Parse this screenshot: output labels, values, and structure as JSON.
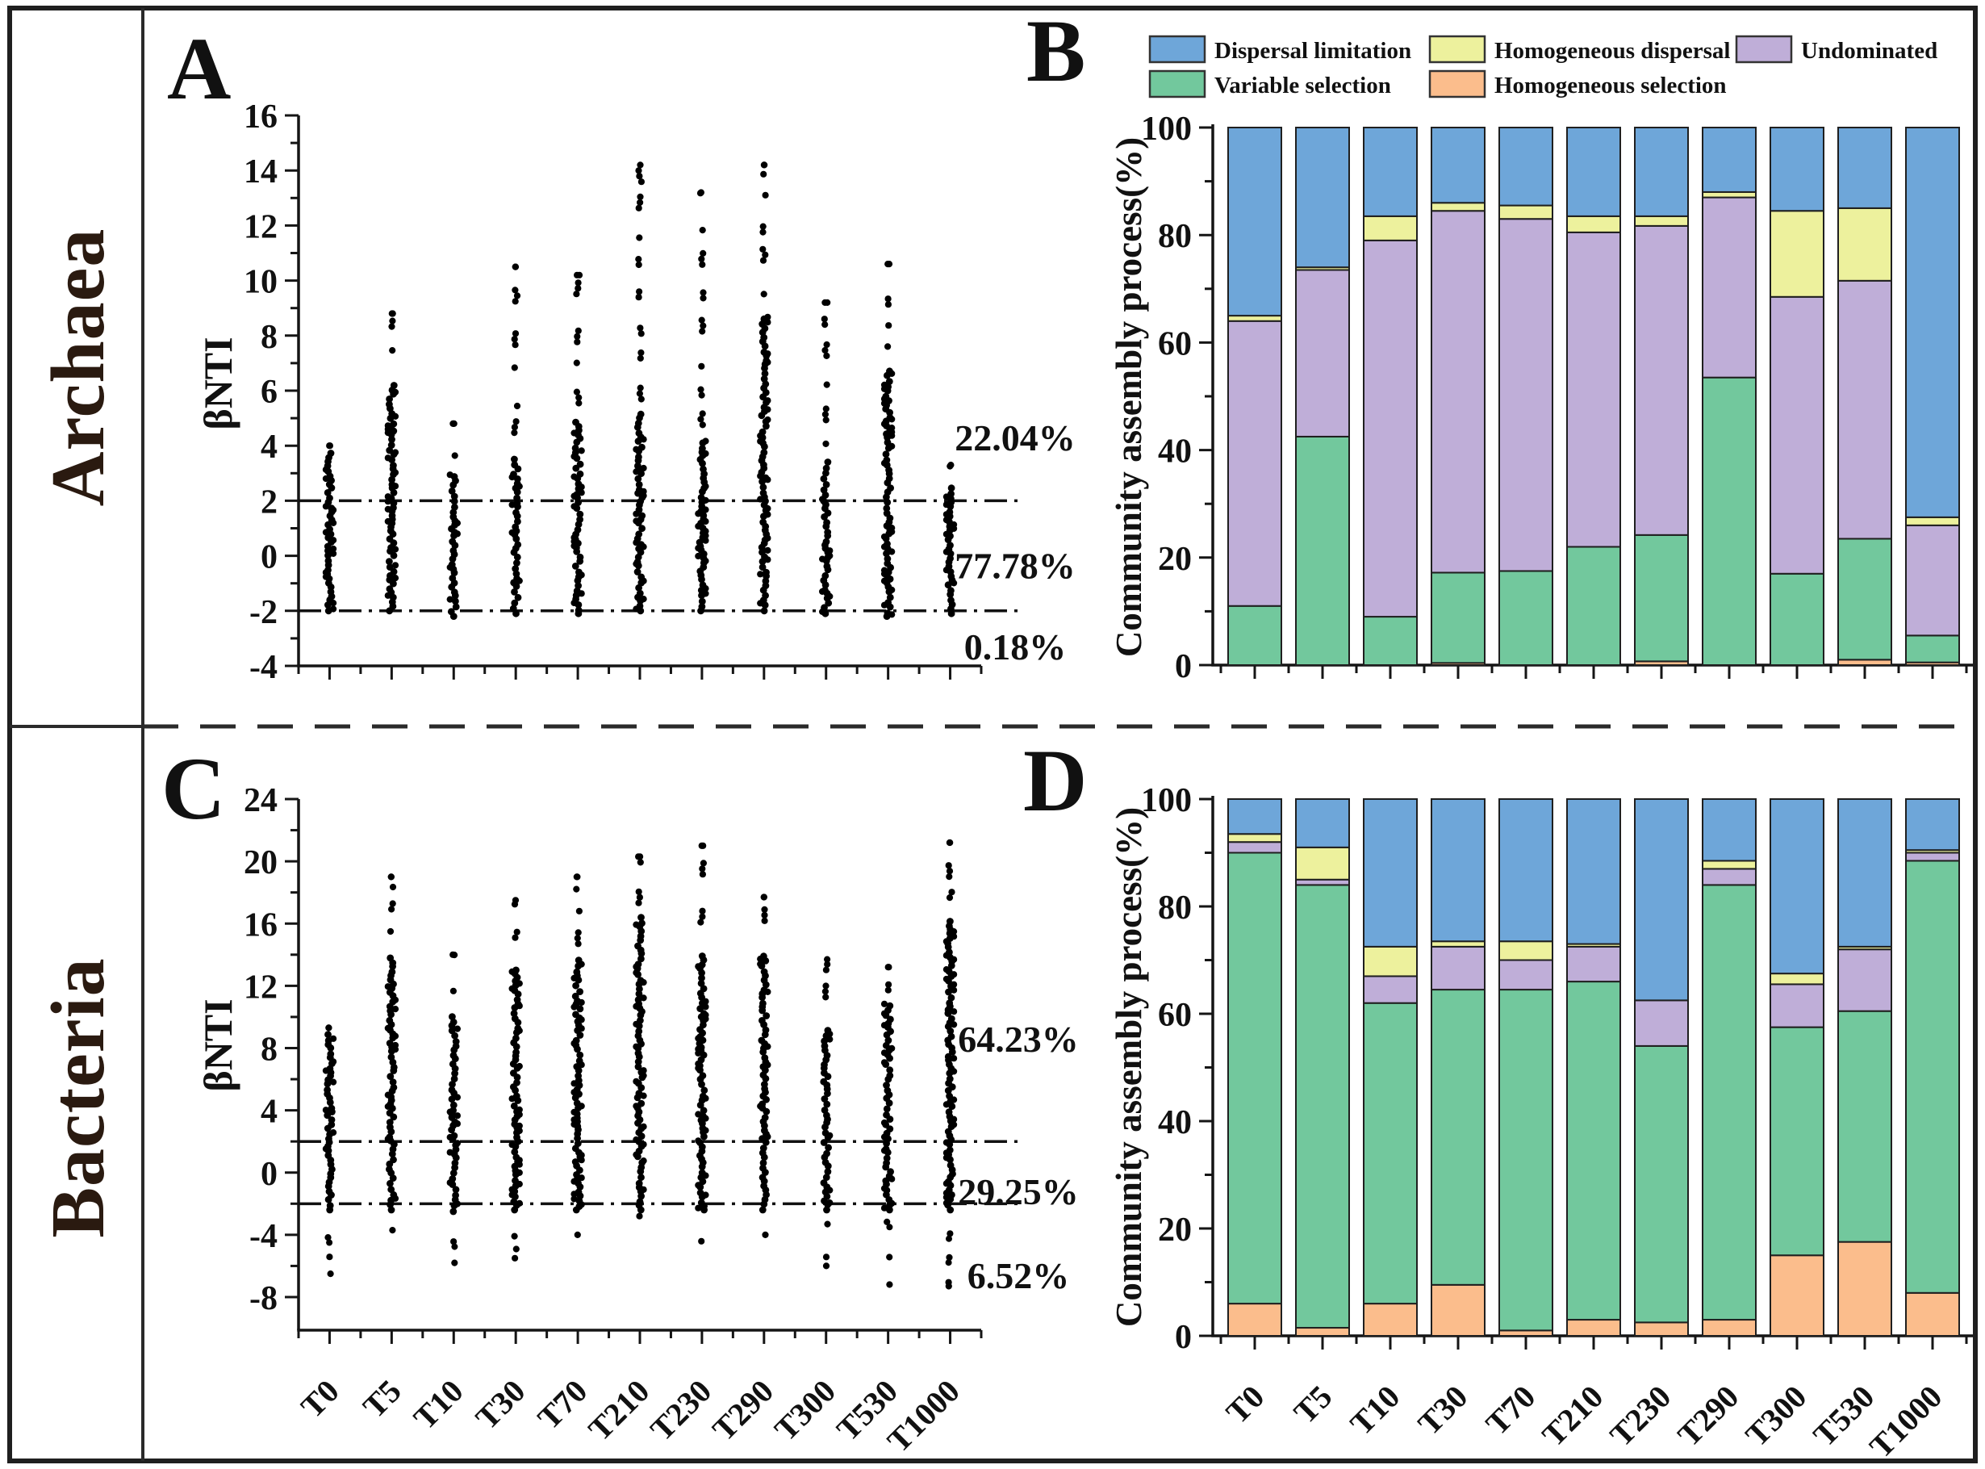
{
  "figure": {
    "panel_labels": {
      "a": "A",
      "b": "B",
      "c": "C",
      "d": "D"
    },
    "row_labels": [
      "Archaea",
      "Bacteria"
    ]
  },
  "legend": {
    "items": [
      {
        "label": "Dispersal limitation",
        "color": "#6ea6d9"
      },
      {
        "label": "Homogeneous dispersal",
        "color": "#edf19d"
      },
      {
        "label": "Undominated",
        "color": "#bfaed8"
      },
      {
        "label": "Variable selection",
        "color": "#72c89d"
      },
      {
        "label": "Homogeneous selection",
        "color": "#fbbd8c"
      }
    ]
  },
  "categories": [
    "T0",
    "T5",
    "T10",
    "T30",
    "T70",
    "T210",
    "T230",
    "T290",
    "T300",
    "T530",
    "T1000"
  ],
  "chart_data": [
    {
      "panel": "A",
      "type": "scatter",
      "organism": "Archaea",
      "ylabel": "βNTI",
      "ylim": [
        -4,
        16
      ],
      "ytick_step": 2,
      "thresholds": [
        2,
        -2
      ],
      "categories": [
        "T0",
        "T5",
        "T10",
        "T30",
        "T70",
        "T210",
        "T230",
        "T290",
        "T300",
        "T530",
        "T1000"
      ],
      "columns": [
        {
          "smin": -2.0,
          "dmin": -2.0,
          "dmax": 3.8,
          "smax": 4.0
        },
        {
          "smin": -2.0,
          "dmin": -2.0,
          "dmax": 6.3,
          "smax": 8.8
        },
        {
          "smin": -2.2,
          "dmin": -2.2,
          "dmax": 3.0,
          "smax": 4.8
        },
        {
          "smin": -2.1,
          "dmin": -2.1,
          "dmax": 3.6,
          "smax": 10.5
        },
        {
          "smin": -2.1,
          "dmin": -2.1,
          "dmax": 5.0,
          "smax": 10.2
        },
        {
          "smin": -2.0,
          "dmin": -2.0,
          "dmax": 5.2,
          "smax": 14.2
        },
        {
          "smin": -2.0,
          "dmin": -2.0,
          "dmax": 4.3,
          "smax": 13.2
        },
        {
          "smin": -2.0,
          "dmin": -2.0,
          "dmax": 8.7,
          "smax": 14.2
        },
        {
          "smin": -2.1,
          "dmin": -2.1,
          "dmax": 3.5,
          "smax": 9.2
        },
        {
          "smin": -2.2,
          "dmin": -2.2,
          "dmax": 6.8,
          "smax": 10.6
        },
        {
          "smin": -2.1,
          "dmin": -2.1,
          "dmax": 2.6,
          "smax": 3.3
        }
      ],
      "annotations": [
        {
          "text": "22.04%",
          "y": 4.3
        },
        {
          "text": "77.78%",
          "y": -0.35
        },
        {
          "text": "0.18%",
          "y": -3.3
        }
      ]
    },
    {
      "panel": "B",
      "type": "bar",
      "stacked": true,
      "organism": "Archaea",
      "ylabel": "Community assembly process(%)",
      "ylim": [
        0,
        100
      ],
      "ytick_step": 20,
      "categories": [
        "T0",
        "T5",
        "T10",
        "T30",
        "T70",
        "T210",
        "T230",
        "T290",
        "T300",
        "T530",
        "T1000"
      ],
      "series": [
        {
          "name": "Homogeneous selection",
          "color": "#fbbd8c",
          "values": [
            0,
            0,
            0,
            0.4,
            0,
            0,
            0.7,
            0,
            0,
            1,
            0.5
          ]
        },
        {
          "name": "Variable selection",
          "color": "#72c89d",
          "values": [
            11,
            42.5,
            9,
            16.8,
            17.5,
            22,
            23.5,
            53.5,
            17,
            22.5,
            5
          ]
        },
        {
          "name": "Undominated",
          "color": "#bfaed8",
          "values": [
            53,
            31,
            70,
            67.3,
            65.5,
            58.5,
            57.5,
            33.5,
            51.5,
            48,
            20.5
          ]
        },
        {
          "name": "Homogeneous dispersal",
          "color": "#edf19d",
          "values": [
            1,
            0.5,
            4.5,
            1.5,
            2.5,
            3,
            1.8,
            1,
            16,
            13.5,
            1.5
          ]
        },
        {
          "name": "Dispersal limitation",
          "color": "#6ea6d9",
          "values": [
            35,
            26,
            16.5,
            14,
            14.5,
            16.5,
            16.5,
            12,
            15.5,
            15,
            72.5
          ]
        }
      ]
    },
    {
      "panel": "C",
      "type": "scatter",
      "organism": "Bacteria",
      "ylabel": "βNTI",
      "ylim": [
        -8,
        24
      ],
      "ytick_step": 4,
      "thresholds": [
        2,
        -2
      ],
      "categories": [
        "T0",
        "T5",
        "T10",
        "T30",
        "T70",
        "T210",
        "T230",
        "T290",
        "T300",
        "T530",
        "T1000"
      ],
      "columns": [
        {
          "smin": -6.5,
          "dmin": -2.4,
          "dmax": 9.2,
          "smax": 9.3
        },
        {
          "smin": -3.7,
          "dmin": -2.4,
          "dmax": 14.0,
          "smax": 19.0
        },
        {
          "smin": -5.8,
          "dmin": -2.5,
          "dmax": 10.2,
          "smax": 14.0
        },
        {
          "smin": -5.5,
          "dmin": -2.4,
          "dmax": 13.2,
          "smax": 17.5
        },
        {
          "smin": -4.0,
          "dmin": -2.4,
          "dmax": 13.8,
          "smax": 19.0
        },
        {
          "smin": -2.8,
          "dmin": -2.4,
          "dmax": 16.5,
          "smax": 20.3
        },
        {
          "smin": -4.5,
          "dmin": -2.4,
          "dmax": 14.2,
          "smax": 21.0
        },
        {
          "smin": -4.0,
          "dmin": -2.4,
          "dmax": 14.2,
          "smax": 17.7
        },
        {
          "smin": -6.0,
          "dmin": -2.4,
          "dmax": 9.2,
          "smax": 13.7
        },
        {
          "smin": -7.2,
          "dmin": -2.4,
          "dmax": 10.8,
          "smax": 13.2
        },
        {
          "smin": -7.3,
          "dmin": -2.4,
          "dmax": 16.3,
          "smax": 21.2
        }
      ],
      "annotations": [
        {
          "text": "64.23%",
          "y": 8.6
        },
        {
          "text": "29.25%",
          "y": -1.2
        },
        {
          "text": "6.52%",
          "y": -6.6
        }
      ]
    },
    {
      "panel": "D",
      "type": "bar",
      "stacked": true,
      "organism": "Bacteria",
      "ylabel": "Community assembly process(%)",
      "ylim": [
        0,
        100
      ],
      "ytick_step": 20,
      "categories": [
        "T0",
        "T5",
        "T10",
        "T30",
        "T70",
        "T210",
        "T230",
        "T290",
        "T300",
        "T530",
        "T1000"
      ],
      "series": [
        {
          "name": "Homogeneous selection",
          "color": "#fbbd8c",
          "values": [
            6,
            1.5,
            6,
            9.5,
            1,
            3,
            2.5,
            3,
            15,
            17.5,
            8
          ]
        },
        {
          "name": "Variable selection",
          "color": "#72c89d",
          "values": [
            84,
            82.5,
            56,
            55,
            63.5,
            63,
            51.5,
            81,
            42.5,
            43,
            80.5
          ]
        },
        {
          "name": "Undominated",
          "color": "#bfaed8",
          "values": [
            2,
            1,
            5,
            8,
            5.5,
            6.5,
            8.5,
            3,
            8,
            11.5,
            1.5
          ]
        },
        {
          "name": "Homogeneous dispersal",
          "color": "#edf19d",
          "values": [
            1.5,
            6,
            5.5,
            1,
            3.5,
            0.5,
            0,
            1.5,
            2,
            0.5,
            0.5
          ]
        },
        {
          "name": "Dispersal limitation",
          "color": "#6ea6d9",
          "values": [
            6.5,
            9,
            27.5,
            26.5,
            26.5,
            27,
            37.5,
            11.5,
            32.5,
            27.5,
            9.5
          ]
        }
      ]
    }
  ]
}
